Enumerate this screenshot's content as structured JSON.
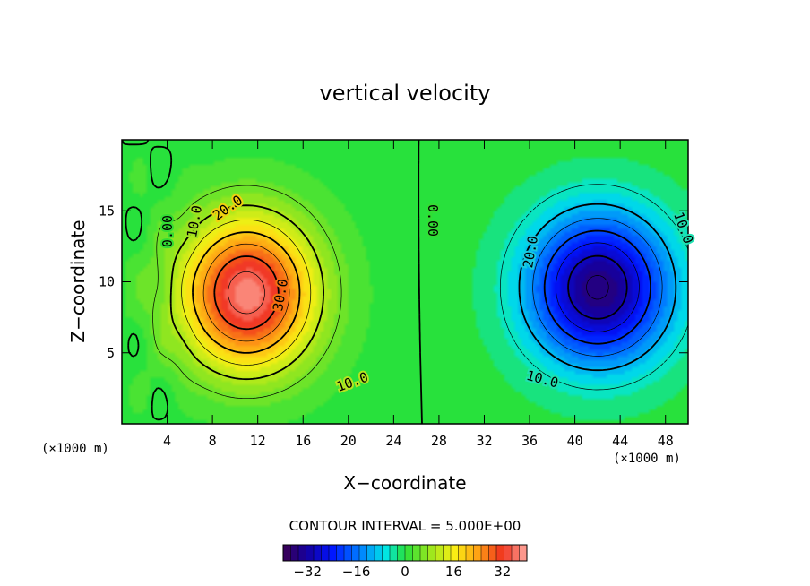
{
  "chart_data": {
    "type": "heatmap",
    "title": "vertical velocity",
    "xlabel": "X−coordinate",
    "ylabel": "Z−coordinate",
    "x_unit_left": "(×1000 m)",
    "x_unit_right": "(×1000 m)",
    "xlim": [
      0,
      50
    ],
    "ylim": [
      0,
      20
    ],
    "x_ticks": [
      4,
      8,
      12,
      16,
      20,
      24,
      28,
      32,
      36,
      40,
      44,
      48
    ],
    "y_ticks": [
      5,
      10,
      15
    ],
    "contour_interval_text": "CONTOUR INTERVAL = 5.000E+00",
    "contour_interval": 5,
    "colorbar": {
      "min": -40,
      "max": 40,
      "ticks": [
        -32,
        -16,
        0,
        16,
        32
      ]
    },
    "contour_labels": [
      "0.00",
      "10.0",
      "20.0",
      "30.0",
      "10.0",
      "0.00",
      "20.0",
      "10.0",
      "10.0"
    ],
    "field": {
      "positive_cell": {
        "center_x": 11,
        "center_z": 9,
        "peak": 38
      },
      "negative_cell": {
        "center_x": 42,
        "center_z": 9.5,
        "peak": -36
      }
    }
  }
}
